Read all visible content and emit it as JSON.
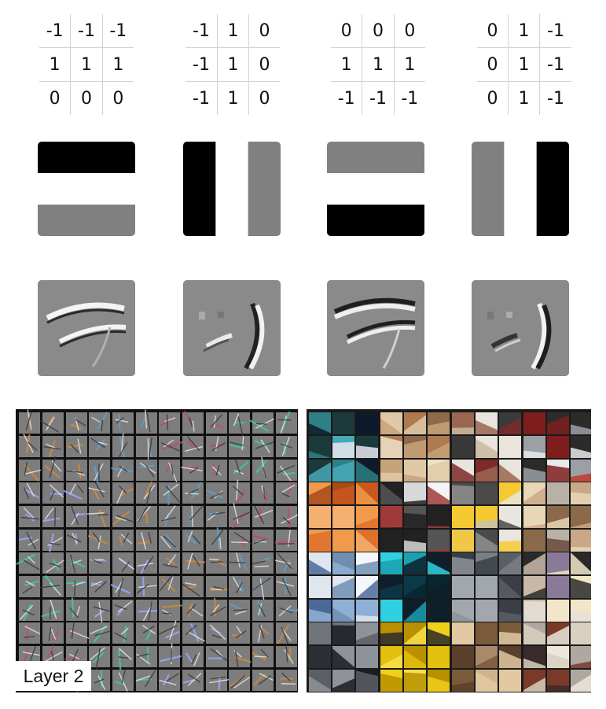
{
  "kernels": [
    {
      "rows": [
        [
          "-1",
          "-1",
          "-1"
        ],
        [
          "1",
          "1",
          "1"
        ],
        [
          "0",
          "0",
          "0"
        ]
      ]
    },
    {
      "rows": [
        [
          "-1",
          "1",
          "0"
        ],
        [
          "-1",
          "1",
          "0"
        ],
        [
          "-1",
          "1",
          "0"
        ]
      ]
    },
    {
      "rows": [
        [
          "0",
          "0",
          "0"
        ],
        [
          "1",
          "1",
          "1"
        ],
        [
          "-1",
          "-1",
          "-1"
        ]
      ]
    },
    {
      "rows": [
        [
          "0",
          "1",
          "-1"
        ],
        [
          "0",
          "1",
          "-1"
        ],
        [
          "0",
          "1",
          "-1"
        ]
      ]
    }
  ],
  "colors": {
    "neg": "#000000",
    "pos": "#ffffff",
    "zero": "#808080",
    "panel_bg": "#101010",
    "feature_gray": "#7d7d7d"
  },
  "layer_label": "Layer 2"
}
